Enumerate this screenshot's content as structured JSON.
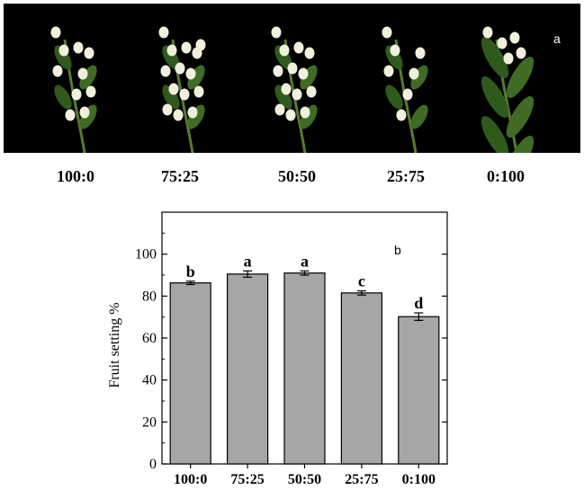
{
  "photo_panel": {
    "panel_label": "a",
    "ratio_labels": [
      "100:0",
      "75:25",
      "50:50",
      "25:75",
      "0:100"
    ]
  },
  "chart_data": {
    "type": "bar",
    "panel_label": "b",
    "title": "",
    "xlabel": "",
    "ylabel": "Fruit setting %",
    "categories": [
      "100:0",
      "75:25",
      "50:50",
      "25:75",
      "0:100"
    ],
    "values": [
      86.3,
      90.5,
      91.0,
      81.5,
      70.2
    ],
    "errors": [
      0.8,
      1.5,
      1.0,
      1.0,
      1.8
    ],
    "significance_letters": [
      "b",
      "a",
      "a",
      "c",
      "d"
    ],
    "ylim": [
      0,
      120
    ],
    "yticks": [
      0,
      20,
      40,
      60,
      80,
      100
    ],
    "grid": false,
    "legend": "none",
    "bar_color": "#a6a6a6",
    "frame_box": true
  }
}
